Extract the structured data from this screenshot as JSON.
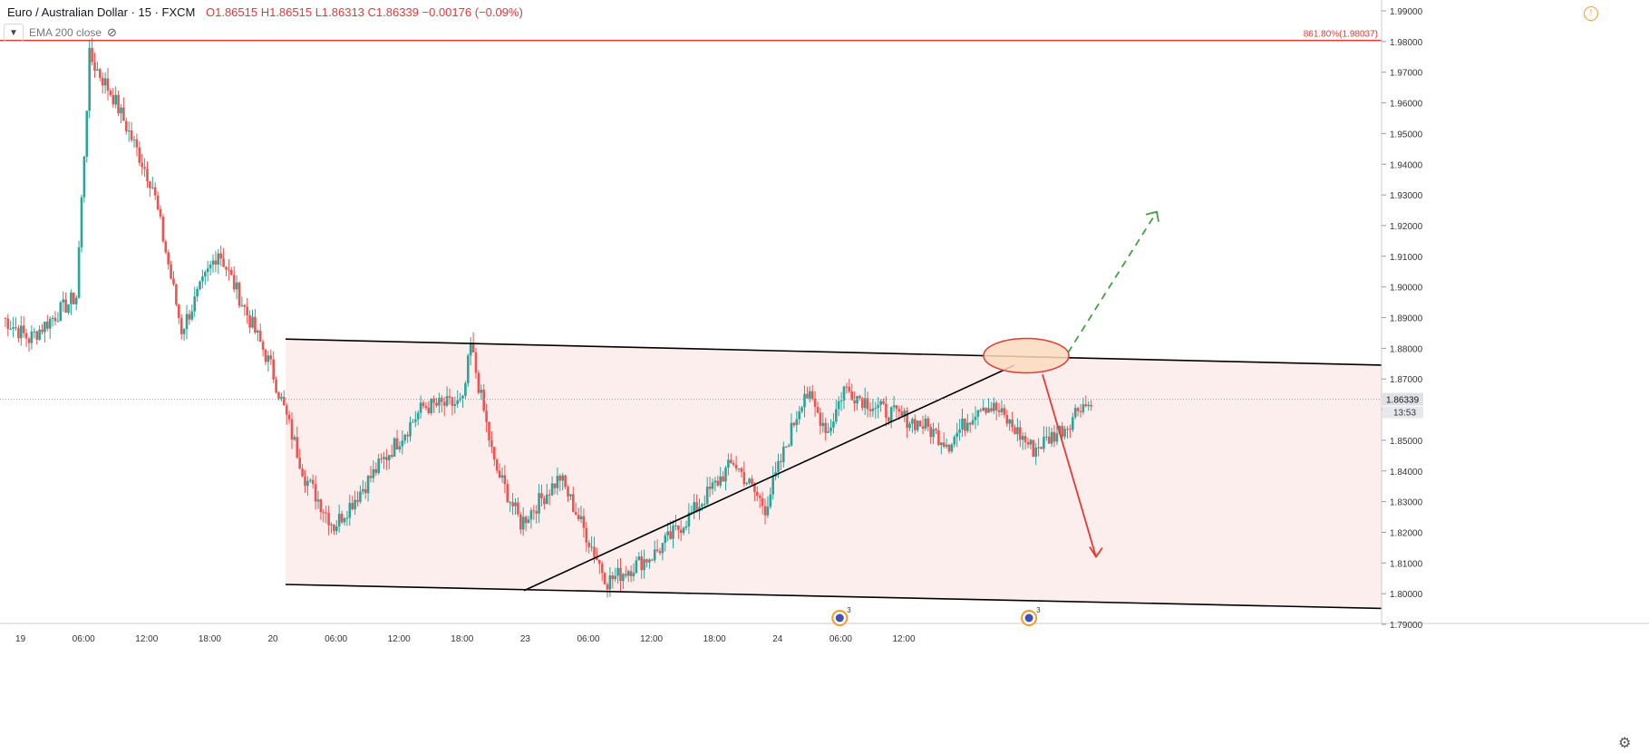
{
  "header": {
    "symbol_title": "Euro / Australian Dollar · 15 · FXCM",
    "ohlc_text": "O1.86515  H1.86515  L1.86313  C1.86339  −0.00176 (−0.09%)",
    "indicator_label": "EMA 200 close"
  },
  "icons": {
    "warning": "warning-icon",
    "collapse": "chevron-down-icon",
    "visibility": "eye-slash-icon",
    "settings": "gear-icon",
    "events": "calendar-event-icon"
  },
  "colors": {
    "up": "#26a69a",
    "down": "#ef5350",
    "fib_line": "#e53935",
    "zone_fill": "#fdeeee",
    "bull_arrow": "#43a047",
    "bear_arrow": "#e53935",
    "ellipse_fill": "#fbd9bd",
    "ellipse_stroke": "#e53935"
  },
  "chart_data": {
    "type": "candlestick",
    "symbol": "Euro / Australian Dollar",
    "timeframe": "15",
    "source": "FXCM",
    "ylim": [
      1.7875,
      1.99
    ],
    "y_ticks": [
      "1.99000",
      "1.98000",
      "1.97000",
      "1.96000",
      "1.95000",
      "1.94000",
      "1.93000",
      "1.92000",
      "1.91000",
      "1.90000",
      "1.89000",
      "1.88000",
      "1.87000",
      "1.86000",
      "1.85000",
      "1.84000",
      "1.83000",
      "1.82000",
      "1.81000",
      "1.80000",
      "1.79000"
    ],
    "x_ticks": [
      "19",
      "06:00",
      "12:00",
      "18:00",
      "20",
      "06:00",
      "12:00",
      "18:00",
      "23",
      "06:00",
      "12:00",
      "18:00",
      "24",
      "06:00",
      "12:00"
    ],
    "fib_level": {
      "value": 1.98037,
      "label": "861.80%(1.98037)"
    },
    "last_price": {
      "value": 1.86339,
      "label": "1.86339",
      "countdown": "13:53"
    },
    "event_markers": [
      {
        "index": 317,
        "count": "3"
      },
      {
        "index": 389,
        "count": "3"
      }
    ],
    "pivots": [
      [
        0,
        1.89
      ],
      [
        10,
        1.883
      ],
      [
        28,
        1.897
      ],
      [
        33,
        1.975
      ],
      [
        42,
        1.962
      ],
      [
        57,
        1.933
      ],
      [
        68,
        1.886
      ],
      [
        82,
        1.912
      ],
      [
        102,
        1.874
      ],
      [
        115,
        1.838
      ],
      [
        126,
        1.822
      ],
      [
        140,
        1.838
      ],
      [
        160,
        1.861
      ],
      [
        175,
        1.862
      ],
      [
        178,
        1.881
      ],
      [
        187,
        1.842
      ],
      [
        197,
        1.823
      ],
      [
        212,
        1.838
      ],
      [
        230,
        1.804
      ],
      [
        248,
        1.813
      ],
      [
        262,
        1.826
      ],
      [
        278,
        1.843
      ],
      [
        290,
        1.828
      ],
      [
        305,
        1.866
      ],
      [
        314,
        1.853
      ],
      [
        320,
        1.867
      ],
      [
        334,
        1.86
      ],
      [
        350,
        1.855
      ],
      [
        360,
        1.849
      ],
      [
        372,
        1.862
      ],
      [
        378,
        1.86
      ],
      [
        392,
        1.847
      ],
      [
        405,
        1.855
      ],
      [
        410,
        1.862
      ],
      [
        414,
        1.861
      ]
    ]
  }
}
